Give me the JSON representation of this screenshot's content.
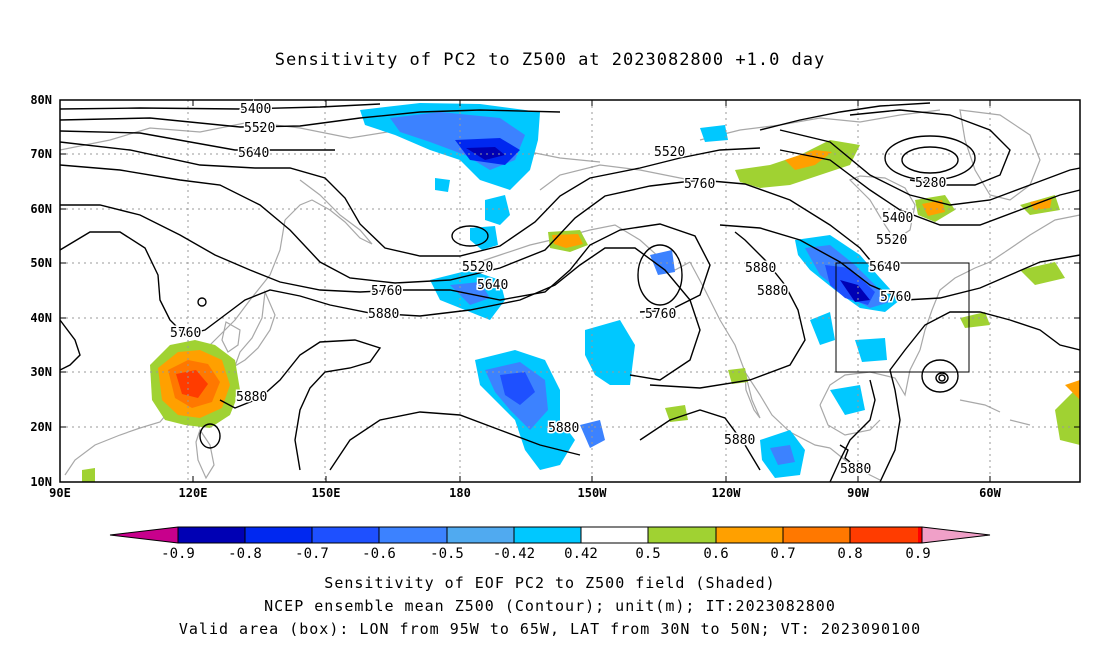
{
  "title": "Sensitivity of PC2 to Z500 at 2023082800 +1.0 day",
  "map": {
    "lon_labels": [
      "90E",
      "120E",
      "150E",
      "180",
      "150W",
      "120W",
      "90W",
      "60W"
    ],
    "lat_labels": [
      "80N",
      "70N",
      "60N",
      "50N",
      "40N",
      "30N",
      "20N",
      "10N"
    ],
    "contour_labels": [
      "5400",
      "5520",
      "5640",
      "5520",
      "5760",
      "5280",
      "5400",
      "5520",
      "5880",
      "5640",
      "5880",
      "5760",
      "5520",
      "5640",
      "5760",
      "5880",
      "5760",
      "5760",
      "5880",
      "5880",
      "5880",
      "5880",
      "5880"
    ],
    "colors": {
      "ocean": "#ffffff",
      "coast": "#a0a0a0",
      "contour": "#000000",
      "grid": "#999999"
    }
  },
  "colorbar": {
    "labels": [
      "-0.9",
      "-0.8",
      "-0.7",
      "-0.6",
      "-0.5",
      "-0.42",
      "0.42",
      "0.5",
      "0.6",
      "0.7",
      "0.8",
      "0.9"
    ],
    "colors": [
      "#c8008c",
      "#0000b4",
      "#0028f0",
      "#1e50ff",
      "#3c82ff",
      "#50aaf0",
      "#00c8ff",
      "#ffffff",
      "#a0d232",
      "#ffa000",
      "#ff7800",
      "#ff3c00",
      "#ff0000",
      "#f0a0c8"
    ]
  },
  "captions": {
    "line1": "Sensitivity of EOF PC2 to Z500 field (Shaded)",
    "line2": "NCEP ensemble mean Z500 (Contour); unit(m); IT:2023082800",
    "line3": "Valid area (box): LON from 95W to 65W, LAT from 30N to 50N; VT: 2023090100"
  }
}
